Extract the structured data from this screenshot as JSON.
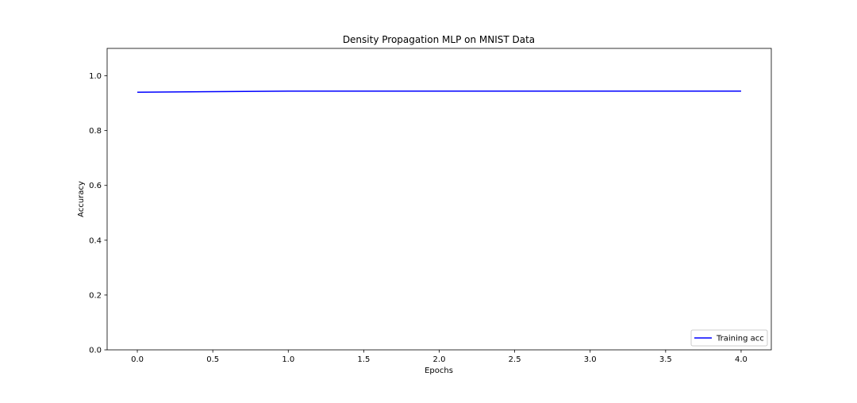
{
  "chart_data": {
    "type": "line",
    "title": "Density Propagation MLP on MNIST Data",
    "xlabel": "Epochs",
    "ylabel": "Accuracy",
    "xlim": [
      -0.2,
      4.2
    ],
    "ylim": [
      0.0,
      1.1
    ],
    "x_ticks": [
      0.0,
      0.5,
      1.0,
      1.5,
      2.0,
      2.5,
      3.0,
      3.5,
      4.0
    ],
    "x_tick_labels": [
      "0.0",
      "0.5",
      "1.0",
      "1.5",
      "2.0",
      "2.5",
      "3.0",
      "3.5",
      "4.0"
    ],
    "y_ticks": [
      0.0,
      0.2,
      0.4,
      0.6,
      0.8,
      1.0
    ],
    "y_tick_labels": [
      "0.0",
      "0.2",
      "0.4",
      "0.6",
      "0.8",
      "1.0"
    ],
    "grid": false,
    "legend_position": "lower-right",
    "series": [
      {
        "name": "Training acc",
        "color": "#0000ff",
        "x": [
          0,
          1,
          2,
          3,
          4
        ],
        "y": [
          0.94,
          0.944,
          0.944,
          0.944,
          0.944
        ]
      }
    ]
  }
}
